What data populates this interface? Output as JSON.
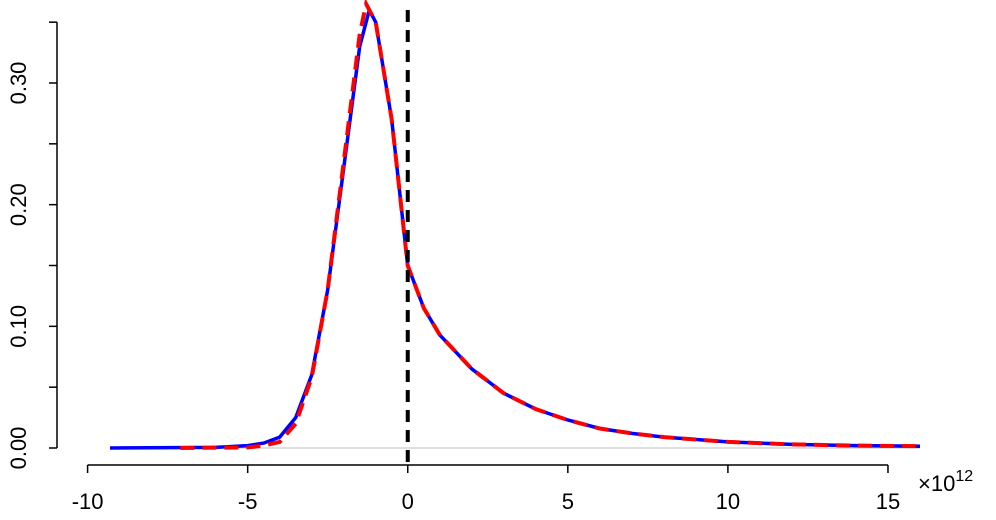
{
  "chart_data": {
    "type": "line",
    "xlim": [
      -9.3,
      16
    ],
    "ylim": [
      0,
      0.36
    ],
    "xticks": [
      -10,
      -5,
      0,
      5,
      10,
      15
    ],
    "yticks": [
      {
        "value": 0,
        "label": "0.00"
      },
      {
        "value": 0.1,
        "label": "0.10"
      },
      {
        "value": 0.2,
        "label": "0.20"
      },
      {
        "value": 0.3,
        "label": "0.30"
      }
    ],
    "yminor_ticks": [
      0.05,
      0.15,
      0.25,
      0.35
    ],
    "x_scale_label": {
      "base": "×10",
      "exponent": "12"
    },
    "hline": {
      "value": 0,
      "color": "#bebebe"
    },
    "vline": {
      "value": 0,
      "color": "#000000"
    },
    "series": [
      {
        "color": "#0000ff",
        "dashed": false,
        "x": [
          -9.3,
          -6,
          -5,
          -4.5,
          -4,
          -3.5,
          -3,
          -2.5,
          -2,
          -1.5,
          -1.2,
          -1,
          -0.5,
          0,
          0.5,
          1,
          2,
          3,
          4,
          5,
          6,
          7,
          8,
          10,
          12,
          14,
          16
        ],
        "values": [
          0,
          0.0005,
          0.002,
          0.004,
          0.009,
          0.025,
          0.06,
          0.13,
          0.23,
          0.33,
          0.36,
          0.35,
          0.27,
          0.15,
          0.115,
          0.093,
          0.065,
          0.045,
          0.032,
          0.023,
          0.016,
          0.012,
          0.009,
          0.005,
          0.003,
          0.002,
          0.0015
        ]
      },
      {
        "color": "#ff0000",
        "dashed": true,
        "x": [
          -7.1,
          -5,
          -4.5,
          -4,
          -3.5,
          -3,
          -2.5,
          -2,
          -1.5,
          -1.3,
          -1,
          -0.5,
          0,
          0.5,
          1,
          2,
          3,
          4,
          5,
          6,
          7,
          8,
          10,
          12,
          14,
          16
        ],
        "values": [
          0,
          0.0005,
          0.002,
          0.005,
          0.02,
          0.058,
          0.13,
          0.235,
          0.34,
          0.365,
          0.35,
          0.27,
          0.15,
          0.115,
          0.093,
          0.065,
          0.045,
          0.032,
          0.023,
          0.016,
          0.012,
          0.009,
          0.005,
          0.003,
          0.002,
          0.0015
        ]
      }
    ]
  }
}
